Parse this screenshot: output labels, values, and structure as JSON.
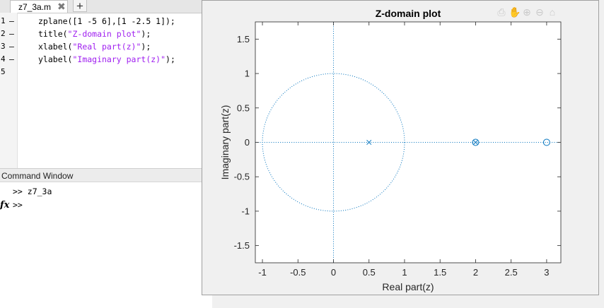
{
  "editor": {
    "tab_label": "z7_3a.m",
    "tab_close": "✖",
    "tab_add": "+",
    "lines": [
      {
        "num": "1",
        "parts": [
          {
            "t": "zplane([1 -5 6],[1 -2.5 1]);",
            "s": false
          }
        ]
      },
      {
        "num": "2",
        "parts": [
          {
            "t": "title(",
            "s": false
          },
          {
            "t": "\"Z-domain plot\"",
            "s": true
          },
          {
            "t": ");",
            "s": false
          }
        ]
      },
      {
        "num": "3",
        "parts": [
          {
            "t": "xlabel(",
            "s": false
          },
          {
            "t": "\"Real part(z)\"",
            "s": true
          },
          {
            "t": ");",
            "s": false
          }
        ]
      },
      {
        "num": "4",
        "parts": [
          {
            "t": "ylabel(",
            "s": false
          },
          {
            "t": "\"Imaginary part(z)\"",
            "s": true
          },
          {
            "t": ");",
            "s": false
          }
        ]
      },
      {
        "num": "5",
        "parts": []
      }
    ]
  },
  "command_window": {
    "title": "Command Window",
    "history": [
      ">> z7_3a",
      ">>"
    ],
    "fx_label": "fx"
  },
  "figure": {
    "toolbar_icons": [
      "export-icon",
      "pan-hand-icon",
      "zoom-in-icon",
      "zoom-out-icon",
      "home-icon"
    ]
  },
  "chart_data": {
    "type": "scatter",
    "title": "Z-domain plot",
    "xlabel": "Real part(z)",
    "ylabel": "Imaginary part(z)",
    "xlim": [
      -1.1,
      3.2
    ],
    "ylim": [
      -1.75,
      1.75
    ],
    "xticks": [
      "-1",
      "-0.5",
      "0",
      "0.5",
      "1",
      "1.5",
      "2",
      "2.5",
      "3"
    ],
    "yticks": [
      "1.5",
      "1",
      "0.5",
      "0",
      "-0.5",
      "-1",
      "-1.5"
    ],
    "zeros": [
      {
        "x": 2,
        "y": 0
      },
      {
        "x": 3,
        "y": 0
      }
    ],
    "poles": [
      {
        "x": 0.5,
        "y": 0
      },
      {
        "x": 2,
        "y": 0
      }
    ],
    "unit_circle": true,
    "marker_color": "#0072BD"
  }
}
